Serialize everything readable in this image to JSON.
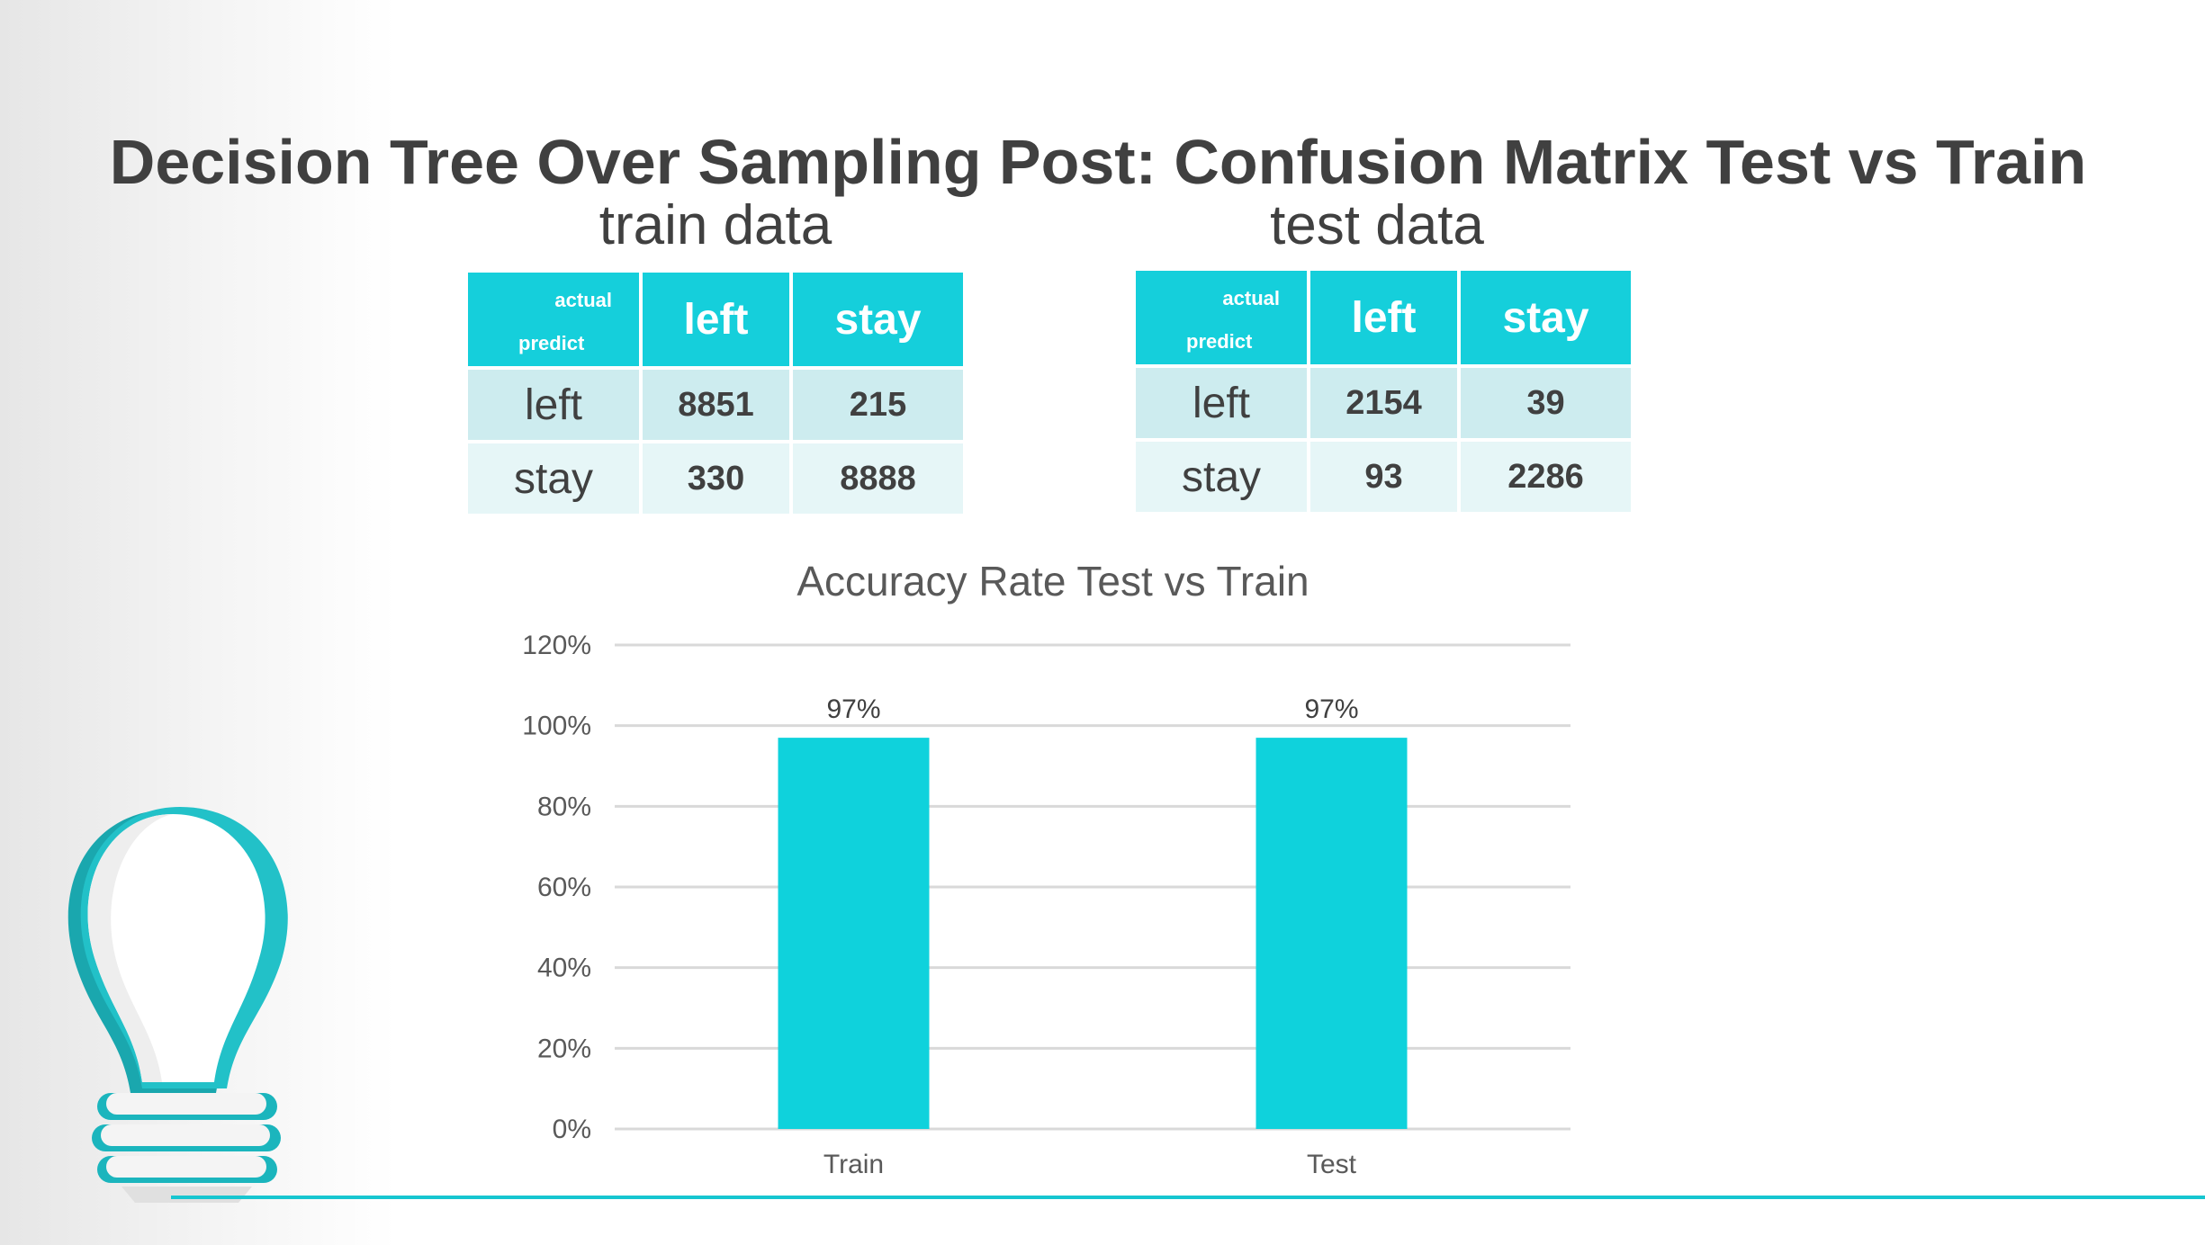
{
  "slide": {
    "title": "Decision Tree Over Sampling Post: Confusion Matrix Test vs Train",
    "accent_color": "#15cfdb",
    "text_color": "#404040"
  },
  "train_matrix": {
    "label": "train data",
    "corner_actual": "actual",
    "corner_predict": "predict",
    "col_headers": [
      "left",
      "stay"
    ],
    "rows": [
      {
        "label": "left",
        "values": [
          "8851",
          "215"
        ]
      },
      {
        "label": "stay",
        "values": [
          "330",
          "8888"
        ]
      }
    ]
  },
  "test_matrix": {
    "label": "test data",
    "corner_actual": "actual",
    "corner_predict": "predict",
    "col_headers": [
      "left",
      "stay"
    ],
    "rows": [
      {
        "label": "left",
        "values": [
          "2154",
          "39"
        ]
      },
      {
        "label": "stay",
        "values": [
          "93",
          "2286"
        ]
      }
    ]
  },
  "chart_data": {
    "type": "bar",
    "title": "Accuracy Rate Test vs Train",
    "categories": [
      "Train",
      "Test"
    ],
    "values": [
      0.97,
      0.97
    ],
    "data_labels": [
      "97%",
      "97%"
    ],
    "ylim": [
      0,
      1.2
    ],
    "yticks": [
      0,
      0.2,
      0.4,
      0.6,
      0.8,
      1.0,
      1.2
    ],
    "ytick_labels": [
      "0%",
      "20%",
      "40%",
      "60%",
      "80%",
      "100%",
      "120%"
    ],
    "xlabel": "",
    "ylabel": "",
    "grid": true,
    "bar_color": "#0fd2dc",
    "grid_color": "#d9d9d9"
  }
}
